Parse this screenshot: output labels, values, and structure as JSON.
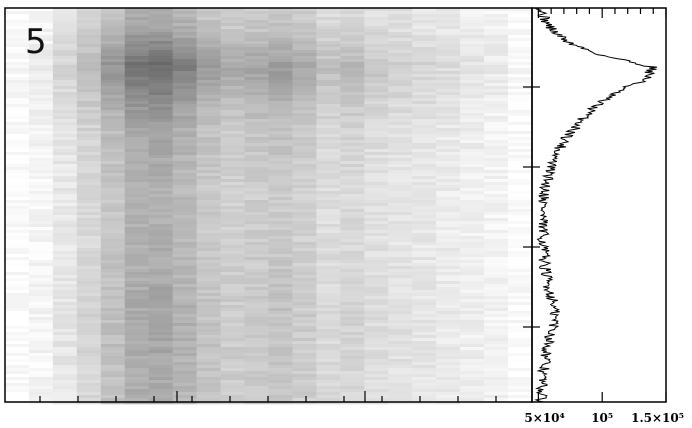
{
  "chart_data": [
    {
      "type": "heatmap",
      "panel_label": "5",
      "colormap": "grayscale",
      "columns": 22,
      "column_darkness": [
        0.02,
        0.05,
        0.12,
        0.2,
        0.3,
        0.4,
        0.42,
        0.36,
        0.28,
        0.24,
        0.26,
        0.28,
        0.24,
        0.18,
        0.2,
        0.16,
        0.14,
        0.12,
        0.1,
        0.08,
        0.06,
        0.02
      ],
      "row_profile": {
        "y": [
          0.0,
          0.05,
          0.1,
          0.15,
          0.2,
          0.25,
          0.3,
          0.35,
          0.4,
          0.45,
          0.5,
          0.6,
          0.7,
          0.8,
          0.9,
          1.0
        ],
        "weight": [
          0.35,
          0.45,
          0.75,
          1.0,
          0.8,
          0.6,
          0.45,
          0.4,
          0.35,
          0.32,
          0.3,
          0.32,
          0.38,
          0.42,
          0.38,
          0.35
        ]
      },
      "grid": false
    },
    {
      "type": "line",
      "orientation": "vertical",
      "x_tick_labels": [
        "5×10⁴",
        "10⁵",
        "1.5×10⁵"
      ],
      "xlim": [
        50000,
        150000
      ],
      "profile": {
        "y": [
          0.0,
          0.03,
          0.06,
          0.09,
          0.12,
          0.15,
          0.18,
          0.21,
          0.24,
          0.27,
          0.3,
          0.33,
          0.36,
          0.4,
          0.45,
          0.5,
          0.55,
          0.6,
          0.65,
          0.7,
          0.75,
          0.8,
          0.85,
          0.9,
          0.95,
          1.0
        ],
        "value": [
          52000,
          55000,
          62000,
          75000,
          100000,
          140000,
          135000,
          112000,
          98000,
          88000,
          80000,
          72000,
          66000,
          60000,
          56000,
          54000,
          53000,
          54000,
          55000,
          57000,
          62000,
          63000,
          58000,
          55000,
          53000,
          52000
        ]
      },
      "grid": false
    }
  ]
}
